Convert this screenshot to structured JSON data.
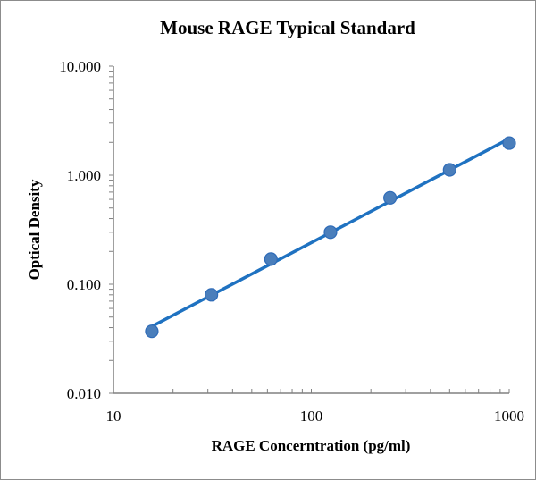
{
  "chart_data": {
    "type": "scatter",
    "title": "Mouse RAGE Typical Standard",
    "xlabel": "RAGE Concerntration (pg/ml)",
    "ylabel": "Optical Density",
    "xscale": "log",
    "yscale": "log",
    "xlim": [
      10,
      1000
    ],
    "ylim": [
      0.01,
      10
    ],
    "x_tick_labels": [
      "10",
      "100",
      "1000"
    ],
    "y_tick_labels": [
      "0.010",
      "0.100",
      "1.000",
      "10.000"
    ],
    "grid": false,
    "legend": "none",
    "series": [
      {
        "name": "Standard",
        "color": "#4a7ebb",
        "line_color": "#1f72c1",
        "x": [
          15.625,
          31.25,
          62.5,
          125,
          250,
          500,
          1000
        ],
        "y": [
          0.037,
          0.08,
          0.17,
          0.3,
          0.62,
          1.12,
          1.97
        ],
        "trendline": "power"
      }
    ]
  }
}
